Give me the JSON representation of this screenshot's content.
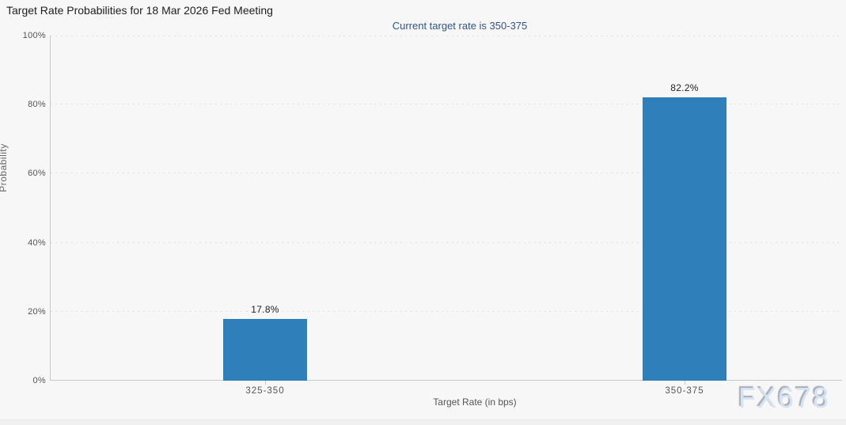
{
  "page": {
    "background_color": "#f7f7f7",
    "footer_strip_color": "#f0f0f0"
  },
  "header": {
    "title": "Target Rate Probabilities for 18 Mar 2026 Fed Meeting",
    "subtitle": "Current target rate is 350-375"
  },
  "watermark_text": "FX678",
  "chart_data": {
    "type": "bar",
    "title": "Target Rate Probabilities for 18 Mar 2026 Fed Meeting",
    "subtitle": "Current target rate is 350-375",
    "categories": [
      "325-350",
      "350-375"
    ],
    "values": [
      17.8,
      82.2
    ],
    "value_labels": [
      "17.8%",
      "82.2%"
    ],
    "xlabel": "Target Rate (in bps)",
    "ylabel": "Probability",
    "ylim": [
      0,
      100
    ],
    "ytick_interval": 20,
    "ytick_labels": [
      "0%",
      "20%",
      "40%",
      "60%",
      "80%",
      "100%"
    ],
    "grid": "horizontal-dotted",
    "legend_position": "none",
    "bar_color": "#2e7fba"
  }
}
